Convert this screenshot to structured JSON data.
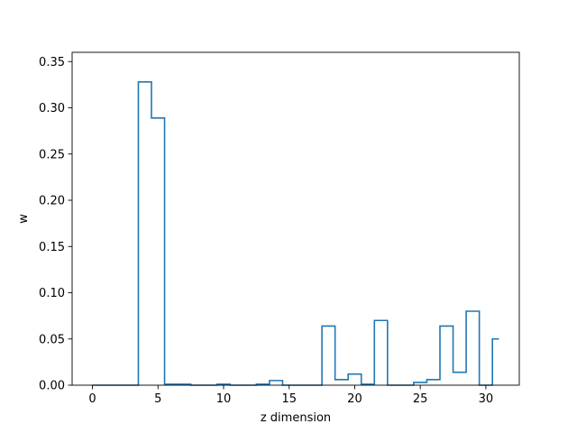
{
  "chart_data": {
    "type": "line",
    "style": "step",
    "xlabel": "z dimension",
    "ylabel": "w",
    "xlim": [
      -1.55,
      32.55
    ],
    "ylim": [
      0,
      0.36
    ],
    "xticks": [
      0,
      5,
      10,
      15,
      20,
      25,
      30
    ],
    "yticks": [
      0.0,
      0.05,
      0.1,
      0.15,
      0.2,
      0.25,
      0.3,
      0.35
    ],
    "ytick_labels": [
      "0.00",
      "0.05",
      "0.10",
      "0.15",
      "0.20",
      "0.25",
      "0.30",
      "0.35"
    ],
    "grid": false,
    "series": [
      {
        "color": "#1f77b4",
        "x": [
          0,
          1,
          2,
          3,
          4,
          5,
          6,
          7,
          8,
          9,
          10,
          11,
          12,
          13,
          14,
          15,
          16,
          17,
          18,
          19,
          20,
          21,
          22,
          23,
          24,
          25,
          26,
          27,
          28,
          29,
          30,
          31
        ],
        "values": [
          0.0,
          0.0,
          0.0,
          0.0,
          0.328,
          0.289,
          0.001,
          0.001,
          0.0,
          0.0,
          0.001,
          0.0,
          0.0,
          0.001,
          0.005,
          0.0,
          0.0,
          0.0,
          0.064,
          0.006,
          0.012,
          0.001,
          0.07,
          0.0,
          0.0,
          0.003,
          0.006,
          0.064,
          0.014,
          0.08,
          0.0,
          0.05
        ]
      }
    ]
  }
}
